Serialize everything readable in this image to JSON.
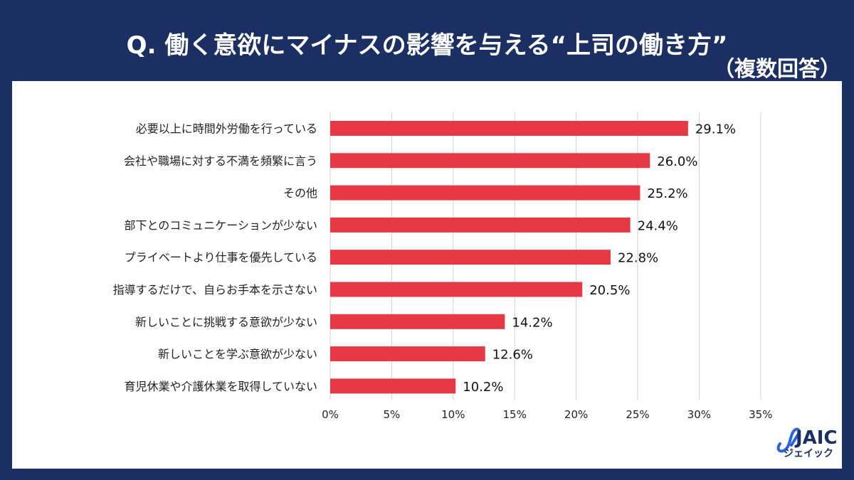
{
  "header": {
    "title": "Q. 働く意欲にマイナスの影響を与える“上司の働き方”",
    "subtitle": "（複数回答）"
  },
  "logo": {
    "text": "JAIC",
    "kana": "ジェイック"
  },
  "colors": {
    "background": "#1b2f63",
    "bar": "#e63946",
    "grid": "#d0d0d0"
  },
  "chart_data": {
    "type": "bar",
    "orientation": "horizontal",
    "title": "Q. 働く意欲にマイナスの影響を与える“上司の働き方”（複数回答）",
    "categories": [
      "必要以上に時間外労働を行っている",
      "会社や職場に対する不満を頻繁に言う",
      "その他",
      "部下とのコミュニケーションが少ない",
      "プライベートより仕事を優先している",
      "指導するだけで、自らお手本を示さない",
      "新しいことに挑戦する意欲が少ない",
      "新しいことを学ぶ意欲が少ない",
      "育児休業や介護休業を取得していない"
    ],
    "values": [
      29.1,
      26.0,
      25.2,
      24.4,
      22.8,
      20.5,
      14.2,
      12.6,
      10.2
    ],
    "value_labels": [
      "29.1%",
      "26.0%",
      "25.2%",
      "24.4%",
      "22.8%",
      "20.5%",
      "14.2%",
      "12.6%",
      "10.2%"
    ],
    "xlim": [
      0,
      35
    ],
    "xticks": [
      0,
      5,
      10,
      15,
      20,
      25,
      30,
      35
    ],
    "xtick_labels": [
      "0%",
      "5%",
      "10%",
      "15%",
      "20%",
      "25%",
      "30%",
      "35%"
    ],
    "grid": true,
    "xlabel": "",
    "ylabel": ""
  }
}
